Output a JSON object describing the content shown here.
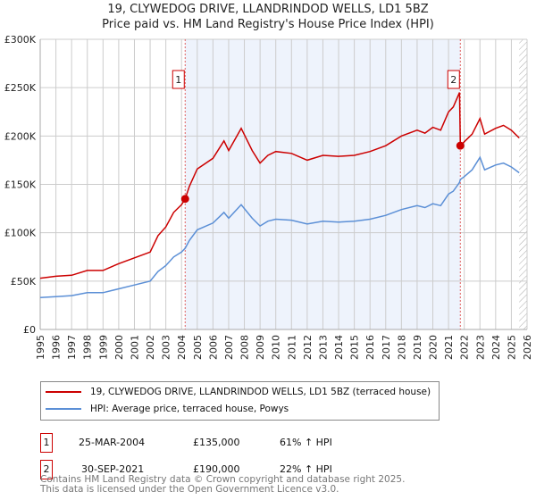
{
  "chart_data": {
    "type": "line",
    "title": "19, CLYWEDOG DRIVE, LLANDRINDOD WELLS, LD1 5BZ",
    "subtitle": "Price paid vs. HM Land Registry's House Price Index (HPI)",
    "xlim": [
      1995,
      2026
    ],
    "ylim": [
      0,
      300000
    ],
    "grid": true,
    "yticks": [
      {
        "v": 0,
        "label": "£0"
      },
      {
        "v": 50000,
        "label": "£50K"
      },
      {
        "v": 100000,
        "label": "£100K"
      },
      {
        "v": 150000,
        "label": "£150K"
      },
      {
        "v": 200000,
        "label": "£200K"
      },
      {
        "v": 250000,
        "label": "£250K"
      },
      {
        "v": 300000,
        "label": "£300K"
      }
    ],
    "xticks": [
      "1995",
      "1996",
      "1997",
      "1998",
      "1999",
      "2000",
      "2001",
      "2002",
      "2003",
      "2004",
      "2005",
      "2006",
      "2007",
      "2008",
      "2009",
      "2010",
      "2011",
      "2012",
      "2013",
      "2014",
      "2015",
      "2016",
      "2017",
      "2018",
      "2019",
      "2020",
      "2021",
      "2022",
      "2023",
      "2024",
      "2025",
      "2026"
    ],
    "forecast_from": 2025.5,
    "series": [
      {
        "name": "19, CLYWEDOG DRIVE, LLANDRINDOD WELLS, LD1 5BZ (terraced house)",
        "color": "#cc0000",
        "x": [
          1995,
          1996,
          1997,
          1998,
          1999,
          2000,
          2001,
          2002,
          2002.5,
          2003,
          2003.5,
          2004,
          2004.23,
          2004.5,
          2005,
          2006,
          2006.7,
          2007,
          2007.8,
          2008.5,
          2009,
          2009.5,
          2010,
          2011,
          2012,
          2013,
          2014,
          2015,
          2016,
          2017,
          2018,
          2019,
          2019.5,
          2020,
          2020.5,
          2021,
          2021.3,
          2021.7,
          2021.75,
          2022,
          2022.5,
          2023,
          2023.3,
          2024,
          2024.5,
          2025,
          2025.5
        ],
        "y": [
          53000,
          55000,
          56000,
          61000,
          61000,
          68000,
          74000,
          80000,
          97000,
          106000,
          121000,
          129000,
          135000,
          148000,
          166000,
          177000,
          195000,
          185000,
          208000,
          185000,
          172000,
          180000,
          184000,
          182000,
          175000,
          180000,
          179000,
          180000,
          184000,
          190000,
          200000,
          206000,
          203000,
          209000,
          206000,
          225000,
          230000,
          245000,
          190000,
          194000,
          202000,
          218000,
          202000,
          208000,
          211000,
          206000,
          198000
        ]
      },
      {
        "name": "HPI: Average price, terraced house, Powys",
        "color": "#5b8fd6",
        "x": [
          1995,
          1996,
          1997,
          1998,
          1999,
          2000,
          2001,
          2002,
          2002.5,
          2003,
          2003.5,
          2004,
          2004.23,
          2004.5,
          2005,
          2006,
          2006.7,
          2007,
          2007.8,
          2008.5,
          2009,
          2009.5,
          2010,
          2011,
          2012,
          2013,
          2014,
          2015,
          2016,
          2017,
          2018,
          2019,
          2019.5,
          2020,
          2020.5,
          2021,
          2021.3,
          2021.7,
          2021.75,
          2022,
          2022.5,
          2023,
          2023.3,
          2024,
          2024.5,
          2025,
          2025.5
        ],
        "y": [
          33000,
          34000,
          35000,
          38000,
          38000,
          42000,
          46000,
          50000,
          60000,
          66000,
          75000,
          80000,
          84000,
          92000,
          103000,
          110000,
          121000,
          115000,
          129000,
          115000,
          107000,
          112000,
          114000,
          113000,
          109000,
          112000,
          111000,
          112000,
          114000,
          118000,
          124000,
          128000,
          126000,
          130000,
          128000,
          140000,
          143000,
          152000,
          155000,
          158000,
          165000,
          178000,
          165000,
          170000,
          172000,
          168000,
          162000
        ]
      }
    ],
    "sales": [
      {
        "id": "1",
        "x": 2004.23,
        "y": 135000,
        "date": "25-MAR-2004",
        "price": "£135,000",
        "delta": "61% ↑ HPI"
      },
      {
        "id": "2",
        "x": 2021.75,
        "y": 190000,
        "date": "30-SEP-2021",
        "price": "£190,000",
        "delta": "22% ↑ HPI"
      }
    ]
  },
  "footer": {
    "line1": "Contains HM Land Registry data © Crown copyright and database right 2025.",
    "line2": "This data is licensed under the Open Government Licence v3.0."
  }
}
